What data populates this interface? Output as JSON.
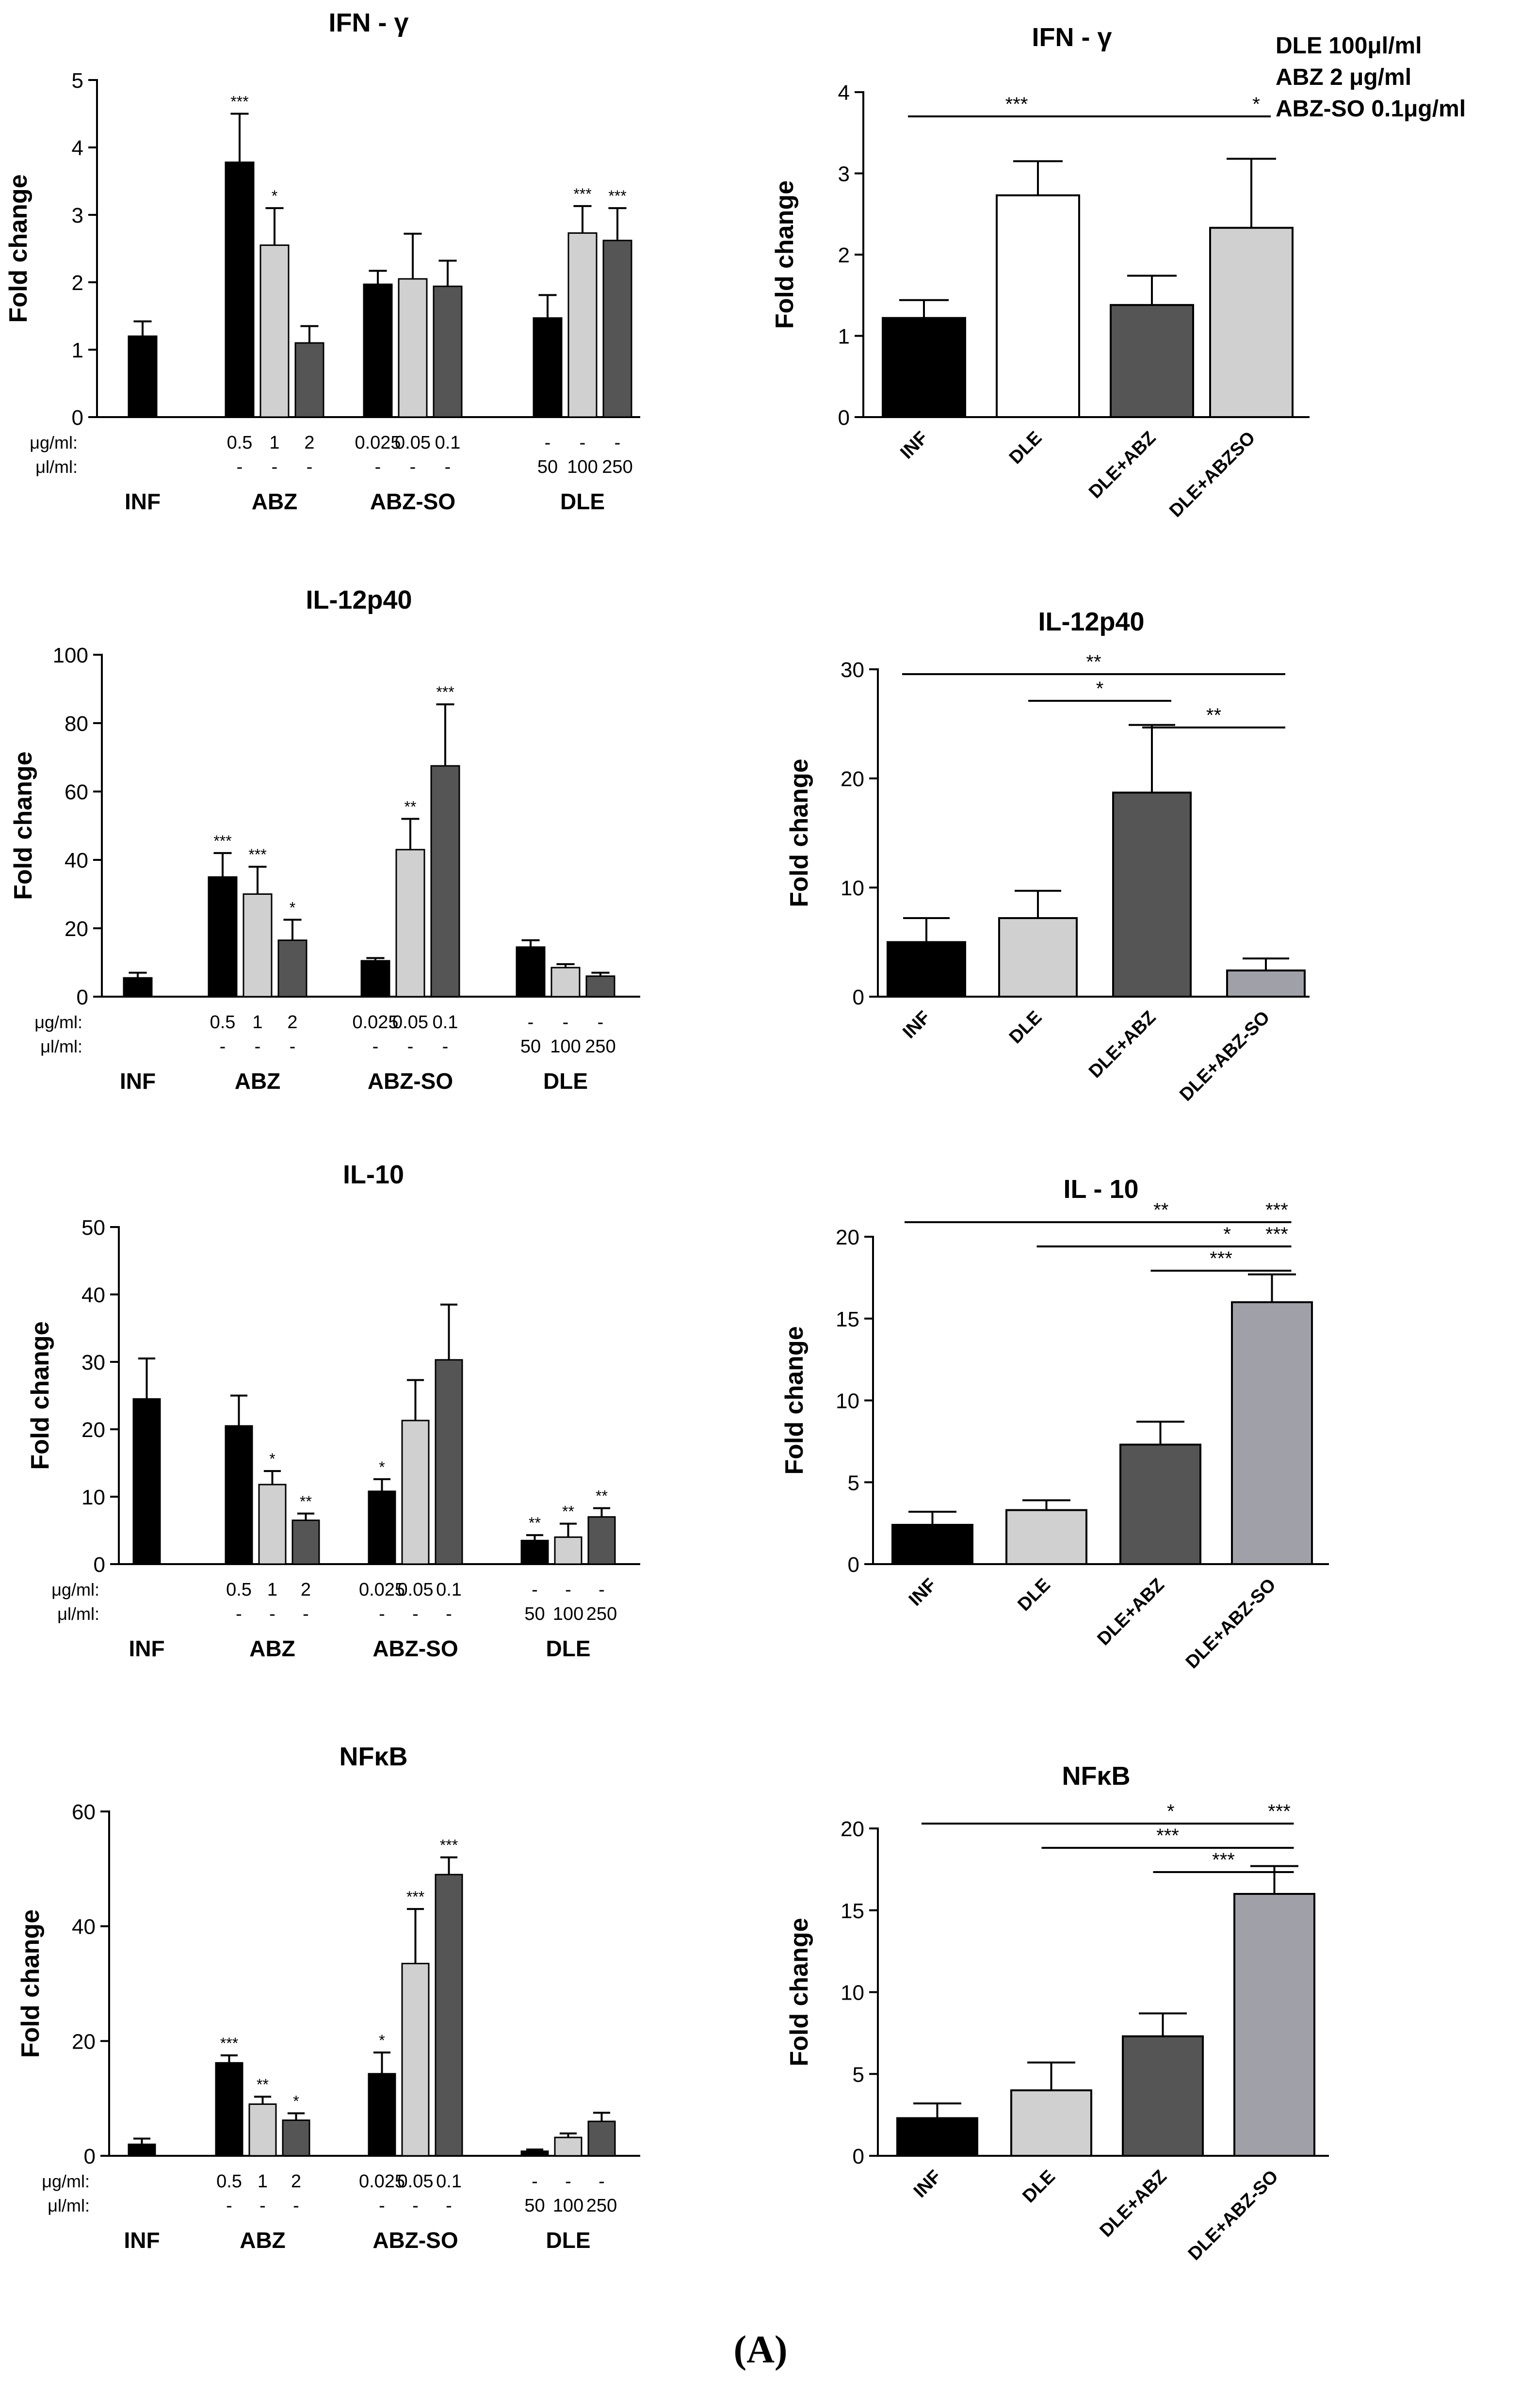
{
  "caption": "(A)",
  "chart_data": [
    {
      "id": "ifn-left",
      "type": "bar",
      "title": "IFN - γ",
      "ylabel": "Fold change",
      "ylim": [
        0,
        5
      ],
      "yticks": [
        "0",
        "1",
        "2",
        "3",
        "4",
        "5"
      ],
      "param_labels": [
        "μg/ml:",
        "μl/ml:"
      ],
      "groups": [
        {
          "label": "INF",
          "bars": [
            {
              "value": 1.2,
              "err": 0.22,
              "fill": "#000000",
              "ug": "",
              "ul": "",
              "sig": ""
            }
          ]
        },
        {
          "label": "ABZ",
          "bars": [
            {
              "value": 3.78,
              "err": 0.72,
              "fill": "#000000",
              "ug": "0.5",
              "ul": "-",
              "sig": "***"
            },
            {
              "value": 2.55,
              "err": 0.55,
              "fill": "#d0d0d0",
              "ug": "1",
              "ul": "-",
              "sig": "*"
            },
            {
              "value": 1.1,
              "err": 0.25,
              "fill": "#555555",
              "ug": "2",
              "ul": "-",
              "sig": ""
            }
          ]
        },
        {
          "label": "ABZ-SO",
          "bars": [
            {
              "value": 1.97,
              "err": 0.2,
              "fill": "#000000",
              "ug": "0.025",
              "ul": "-",
              "sig": ""
            },
            {
              "value": 2.05,
              "err": 0.67,
              "fill": "#d0d0d0",
              "ug": "0.05",
              "ul": "-",
              "sig": ""
            },
            {
              "value": 1.94,
              "err": 0.38,
              "fill": "#555555",
              "ug": "0.1",
              "ul": "-",
              "sig": ""
            }
          ]
        },
        {
          "label": "DLE",
          "bars": [
            {
              "value": 1.47,
              "err": 0.34,
              "fill": "#000000",
              "ug": "-",
              "ul": "50",
              "sig": ""
            },
            {
              "value": 2.73,
              "err": 0.4,
              "fill": "#d0d0d0",
              "ug": "-",
              "ul": "100",
              "sig": "***"
            },
            {
              "value": 2.62,
              "err": 0.48,
              "fill": "#555555",
              "ug": "-",
              "ul": "250",
              "sig": "***"
            }
          ]
        }
      ]
    },
    {
      "id": "ifn-right",
      "type": "bar",
      "title": "IFN - γ",
      "ylabel": "Fold change",
      "ylim": [
        0,
        4
      ],
      "yticks": [
        "0",
        "1",
        "2",
        "3",
        "4"
      ],
      "categories": [
        "INF",
        "DLE",
        "DLE+ABZ",
        "DLE+ABZSO"
      ],
      "values": [
        1.22,
        2.73,
        1.38,
        2.33
      ],
      "errors": [
        0.22,
        0.42,
        0.36,
        0.85
      ],
      "fills": [
        "#000000",
        "#ffffff",
        "#555555",
        "#d0d0d0"
      ],
      "legend": [
        "DLE 100μl/ml",
        "ABZ 2 μg/ml",
        "ABZ-SO 0.1μg/ml"
      ],
      "brackets": [
        {
          "from": 0,
          "to": 3,
          "labels": [
            "***",
            "*"
          ]
        }
      ]
    },
    {
      "id": "il12-left",
      "type": "bar",
      "title": "IL-12p40",
      "ylabel": "Fold change",
      "ylim": [
        0,
        100
      ],
      "yticks": [
        "0",
        "20",
        "40",
        "60",
        "80",
        "100"
      ],
      "param_labels": [
        "μg/ml:",
        "μl/ml:"
      ],
      "groups": [
        {
          "label": "INF",
          "bars": [
            {
              "value": 5.5,
              "err": 1.5,
              "fill": "#000000",
              "ug": "",
              "ul": "",
              "sig": ""
            }
          ]
        },
        {
          "label": "ABZ",
          "bars": [
            {
              "value": 35,
              "err": 7,
              "fill": "#000000",
              "ug": "0.5",
              "ul": "-",
              "sig": "***"
            },
            {
              "value": 30,
              "err": 8,
              "fill": "#d0d0d0",
              "ug": "1",
              "ul": "-",
              "sig": "***"
            },
            {
              "value": 16.5,
              "err": 6,
              "fill": "#555555",
              "ug": "2",
              "ul": "-",
              "sig": "*"
            }
          ]
        },
        {
          "label": "ABZ-SO",
          "bars": [
            {
              "value": 10.5,
              "err": 0.8,
              "fill": "#000000",
              "ug": "0.025",
              "ul": "-",
              "sig": ""
            },
            {
              "value": 43,
              "err": 9,
              "fill": "#d0d0d0",
              "ug": "0.05",
              "ul": "-",
              "sig": "**"
            },
            {
              "value": 67.5,
              "err": 18,
              "fill": "#555555",
              "ug": "0.1",
              "ul": "-",
              "sig": "***"
            }
          ]
        },
        {
          "label": "DLE",
          "bars": [
            {
              "value": 14.5,
              "err": 2,
              "fill": "#000000",
              "ug": "-",
              "ul": "50",
              "sig": ""
            },
            {
              "value": 8.5,
              "err": 1,
              "fill": "#d0d0d0",
              "ug": "-",
              "ul": "100",
              "sig": ""
            },
            {
              "value": 6,
              "err": 1,
              "fill": "#555555",
              "ug": "-",
              "ul": "250",
              "sig": ""
            }
          ]
        }
      ]
    },
    {
      "id": "il12-right",
      "type": "bar",
      "title": "IL-12p40",
      "ylabel": "Fold change",
      "ylim": [
        0,
        30
      ],
      "yticks": [
        "0",
        "10",
        "20",
        "30"
      ],
      "categories": [
        "INF",
        "DLE",
        "DLE+ABZ",
        "DLE+ABZ-SO"
      ],
      "values": [
        5,
        7.2,
        18.7,
        2.4
      ],
      "errors": [
        2.2,
        2.5,
        6.2,
        1.1
      ],
      "fills": [
        "#000000",
        "#d0d0d0",
        "#555555",
        "#a0a0a8"
      ],
      "brackets": [
        {
          "from": 0,
          "to": 3,
          "labels": [
            "**"
          ]
        },
        {
          "from": 1,
          "to": 2,
          "labels": [
            "*"
          ]
        },
        {
          "from": 2,
          "to": 3,
          "labels": [
            "**"
          ]
        }
      ]
    },
    {
      "id": "il10-left",
      "type": "bar",
      "title": "IL-10",
      "ylabel": "Fold change",
      "ylim": [
        0,
        50
      ],
      "yticks": [
        "0",
        "10",
        "20",
        "30",
        "40",
        "50"
      ],
      "param_labels": [
        "μg/ml:",
        "μl/ml:"
      ],
      "groups": [
        {
          "label": "INF",
          "bars": [
            {
              "value": 24.5,
              "err": 6,
              "fill": "#000000",
              "ug": "",
              "ul": "",
              "sig": ""
            }
          ]
        },
        {
          "label": "ABZ",
          "bars": [
            {
              "value": 20.5,
              "err": 4.5,
              "fill": "#000000",
              "ug": "0.5",
              "ul": "-",
              "sig": ""
            },
            {
              "value": 11.8,
              "err": 2,
              "fill": "#d0d0d0",
              "ug": "1",
              "ul": "-",
              "sig": "*"
            },
            {
              "value": 6.5,
              "err": 1,
              "fill": "#555555",
              "ug": "2",
              "ul": "-",
              "sig": "**"
            }
          ]
        },
        {
          "label": "ABZ-SO",
          "bars": [
            {
              "value": 10.8,
              "err": 1.8,
              "fill": "#000000",
              "ug": "0.025",
              "ul": "-",
              "sig": "*"
            },
            {
              "value": 21.3,
              "err": 6,
              "fill": "#d0d0d0",
              "ug": "0.05",
              "ul": "-",
              "sig": ""
            },
            {
              "value": 30.3,
              "err": 8.2,
              "fill": "#555555",
              "ug": "0.1",
              "ul": "-",
              "sig": ""
            }
          ]
        },
        {
          "label": "DLE",
          "bars": [
            {
              "value": 3.5,
              "err": 0.8,
              "fill": "#000000",
              "ug": "-",
              "ul": "50",
              "sig": "**"
            },
            {
              "value": 4,
              "err": 2,
              "fill": "#d0d0d0",
              "ug": "-",
              "ul": "100",
              "sig": "**"
            },
            {
              "value": 7,
              "err": 1.3,
              "fill": "#555555",
              "ug": "-",
              "ul": "250",
              "sig": "**"
            }
          ]
        }
      ]
    },
    {
      "id": "il10-right",
      "type": "bar",
      "title": "IL - 10",
      "ylabel": "Fold change",
      "ylim": [
        0,
        20
      ],
      "yticks": [
        "0",
        "5",
        "10",
        "15",
        "20"
      ],
      "categories": [
        "INF",
        "DLE",
        "DLE+ABZ",
        "DLE+ABZ-SO"
      ],
      "values": [
        2.4,
        3.3,
        7.3,
        16
      ],
      "errors": [
        0.8,
        0.6,
        1.4,
        1.7
      ],
      "fills": [
        "#000000",
        "#d0d0d0",
        "#555555",
        "#a0a0a8"
      ],
      "brackets": [
        {
          "from": 0,
          "to": 3,
          "labels": [
            "**",
            "***"
          ]
        },
        {
          "from": 1,
          "to": 3,
          "labels": [
            "*",
            "***"
          ]
        },
        {
          "from": 2,
          "to": 3,
          "labels": [
            "***"
          ]
        }
      ]
    },
    {
      "id": "nfkb-left",
      "type": "bar",
      "title": "NFκB",
      "ylabel": "Fold change",
      "ylim": [
        0,
        60
      ],
      "yticks": [
        "0",
        "20",
        "40",
        "60"
      ],
      "param_labels": [
        "μg/ml:",
        "μl/ml:"
      ],
      "groups": [
        {
          "label": "INF",
          "bars": [
            {
              "value": 2,
              "err": 1,
              "fill": "#000000",
              "ug": "",
              "ul": "",
              "sig": ""
            }
          ]
        },
        {
          "label": "ABZ",
          "bars": [
            {
              "value": 16.2,
              "err": 1.3,
              "fill": "#000000",
              "ug": "0.5",
              "ul": "-",
              "sig": "***"
            },
            {
              "value": 9,
              "err": 1.3,
              "fill": "#d0d0d0",
              "ug": "1",
              "ul": "-",
              "sig": "**"
            },
            {
              "value": 6.2,
              "err": 1.2,
              "fill": "#555555",
              "ug": "2",
              "ul": "-",
              "sig": "*"
            }
          ]
        },
        {
          "label": "ABZ-SO",
          "bars": [
            {
              "value": 14.3,
              "err": 3.7,
              "fill": "#000000",
              "ug": "0.025",
              "ul": "-",
              "sig": "*"
            },
            {
              "value": 33.5,
              "err": 9.5,
              "fill": "#d0d0d0",
              "ug": "0.05",
              "ul": "-",
              "sig": "***"
            },
            {
              "value": 49,
              "err": 3,
              "fill": "#555555",
              "ug": "0.1",
              "ul": "-",
              "sig": "***"
            }
          ]
        },
        {
          "label": "DLE",
          "bars": [
            {
              "value": 0.8,
              "err": 0.3,
              "fill": "#000000",
              "ug": "-",
              "ul": "50",
              "sig": ""
            },
            {
              "value": 3.2,
              "err": 0.7,
              "fill": "#d0d0d0",
              "ug": "-",
              "ul": "100",
              "sig": ""
            },
            {
              "value": 6,
              "err": 1.5,
              "fill": "#555555",
              "ug": "-",
              "ul": "250",
              "sig": ""
            }
          ]
        }
      ]
    },
    {
      "id": "nfkb-right",
      "type": "bar",
      "title": "NFκB",
      "ylabel": "Fold change",
      "ylim": [
        0,
        20
      ],
      "yticks": [
        "0",
        "5",
        "10",
        "15",
        "20"
      ],
      "categories": [
        "INF",
        "DLE",
        "DLE+ABZ",
        "DLE+ABZ-SO"
      ],
      "values": [
        2.3,
        4,
        7.3,
        16
      ],
      "errors": [
        0.9,
        1.7,
        1.4,
        1.7
      ],
      "fills": [
        "#000000",
        "#d0d0d0",
        "#555555",
        "#a0a0a8"
      ],
      "brackets": [
        {
          "from": 0,
          "to": 3,
          "labels": [
            "*",
            "***"
          ]
        },
        {
          "from": 1,
          "to": 3,
          "labels": [
            "***"
          ]
        },
        {
          "from": 2,
          "to": 3,
          "labels": [
            "***"
          ]
        }
      ]
    }
  ]
}
